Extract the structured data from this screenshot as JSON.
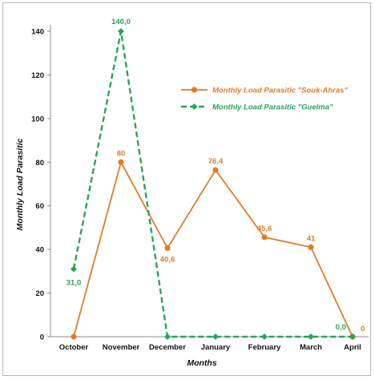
{
  "chart_data": {
    "type": "line",
    "title": "",
    "xlabel": "Months",
    "ylabel": "Monthly Load Parasitic",
    "categories": [
      "October",
      "November",
      "December",
      "January",
      "February",
      "March",
      "April"
    ],
    "ylim": [
      0,
      140
    ],
    "yticks": [
      "0",
      "20",
      "40",
      "60",
      "80",
      "100",
      "120",
      "140"
    ],
    "grid": false,
    "legend_position": "top-right",
    "series": [
      {
        "name": "Monthly Load Parasitic \"Souk-Ahras\"",
        "color": "#e07c2a",
        "style": "solid",
        "marker": "circle",
        "values": [
          0,
          80,
          40.6,
          76.4,
          45.6,
          41,
          0
        ],
        "labels": [
          "",
          "80",
          "40,6",
          "76,4",
          "45,6",
          "41",
          "0"
        ]
      },
      {
        "name": "Monthly Load Parasitic \"Guelma\"",
        "color": "#2aa35a",
        "style": "dashed",
        "marker": "diamond",
        "values": [
          31,
          140,
          0,
          0,
          0,
          0,
          0
        ],
        "labels": [
          "31,0",
          "140,0",
          "",
          "",
          "",
          "",
          "0,0"
        ]
      }
    ]
  }
}
